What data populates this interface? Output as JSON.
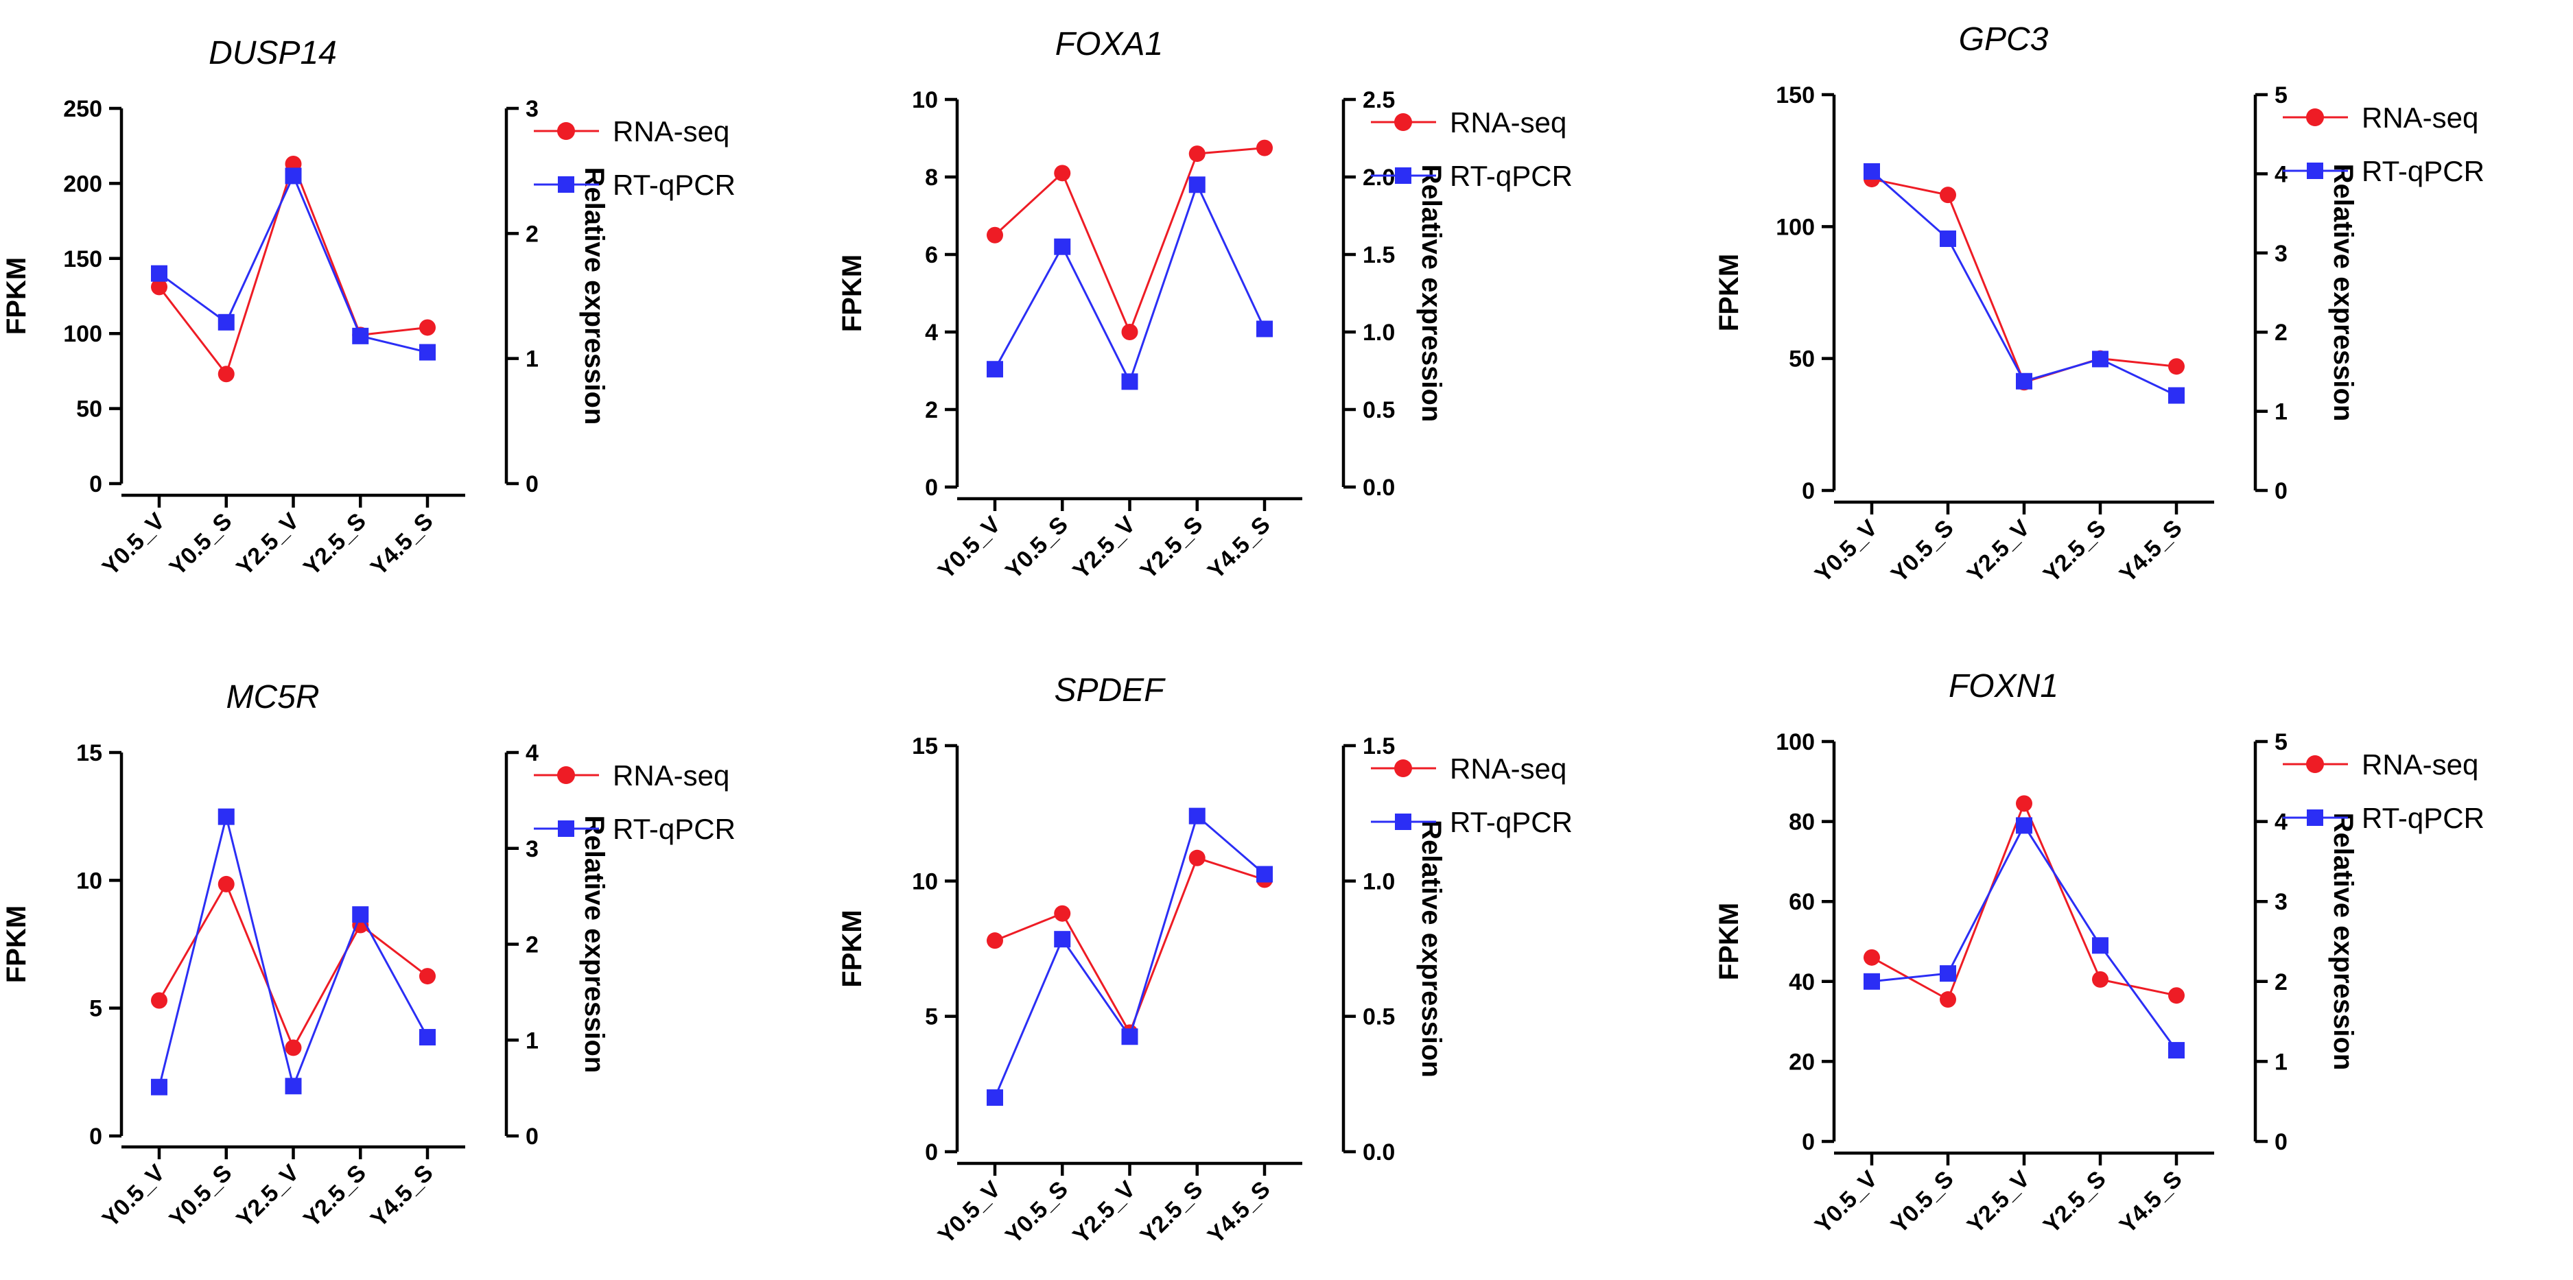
{
  "chart_data": [
    {
      "type": "line",
      "title": "DUSP14",
      "ylabel": "FPKM",
      "y2label": "Relative expression",
      "categories": [
        "Y0.5_V",
        "Y0.5_S",
        "Y2.5_V",
        "Y2.5_S",
        "Y4.5_S"
      ],
      "ylim": [
        0,
        250
      ],
      "yticks": [
        0,
        50,
        100,
        150,
        200,
        250
      ],
      "y2lim": [
        0,
        3
      ],
      "y2ticks": [
        "0",
        "1",
        "2",
        "3"
      ],
      "series": [
        {
          "name": "RNA-seq",
          "axis": "left",
          "color": "#ee1c25",
          "marker": "circle",
          "values": [
            131,
            73,
            213,
            99,
            104
          ]
        },
        {
          "name": "RT-qPCR",
          "axis": "right",
          "color": "#2b2ef5",
          "marker": "square",
          "values": [
            1.68,
            1.29,
            2.46,
            1.18,
            1.05
          ]
        }
      ]
    },
    {
      "type": "line",
      "title": "FOXA1",
      "ylabel": "FPKM",
      "y2label": "Relative expression",
      "categories": [
        "Y0.5_V",
        "Y0.5_S",
        "Y2.5_V",
        "Y2.5_S",
        "Y4.5_S"
      ],
      "ylim": [
        0,
        10
      ],
      "yticks": [
        0,
        2,
        4,
        6,
        8,
        10
      ],
      "y2lim": [
        0,
        2.5
      ],
      "y2ticks": [
        "0.0",
        "0.5",
        "1.0",
        "1.5",
        "2.0",
        "2.5"
      ],
      "series": [
        {
          "name": "RNA-seq",
          "axis": "left",
          "color": "#ee1c25",
          "marker": "circle",
          "values": [
            6.5,
            8.1,
            4.0,
            8.6,
            8.75
          ]
        },
        {
          "name": "RT-qPCR",
          "axis": "right",
          "color": "#2b2ef5",
          "marker": "square",
          "values": [
            0.76,
            1.55,
            0.68,
            1.95,
            1.02
          ]
        }
      ]
    },
    {
      "type": "line",
      "title": "GPC3",
      "ylabel": "FPKM",
      "y2label": "Relative expression",
      "categories": [
        "Y0.5_V",
        "Y0.5_S",
        "Y2.5_V",
        "Y2.5_S",
        "Y4.5_S"
      ],
      "ylim": [
        0,
        150
      ],
      "yticks": [
        0,
        50,
        100,
        150
      ],
      "y2lim": [
        0,
        5
      ],
      "y2ticks": [
        "0",
        "1",
        "2",
        "3",
        "4",
        "5"
      ],
      "series": [
        {
          "name": "RNA-seq",
          "axis": "left",
          "color": "#ee1c25",
          "marker": "circle",
          "values": [
            118,
            112,
            41,
            50,
            47
          ]
        },
        {
          "name": "RT-qPCR",
          "axis": "right",
          "color": "#2b2ef5",
          "marker": "square",
          "values": [
            4.03,
            3.18,
            1.38,
            1.66,
            1.2
          ]
        }
      ]
    },
    {
      "type": "line",
      "title": "MC5R",
      "ylabel": "FPKM",
      "y2label": "Relative expression",
      "categories": [
        "Y0.5_V",
        "Y0.5_S",
        "Y2.5_V",
        "Y2.5_S",
        "Y4.5_S"
      ],
      "ylim": [
        0,
        15
      ],
      "yticks": [
        0,
        5,
        10,
        15
      ],
      "y2lim": [
        0,
        4
      ],
      "y2ticks": [
        "0",
        "1",
        "2",
        "3",
        "4"
      ],
      "series": [
        {
          "name": "RNA-seq",
          "axis": "left",
          "color": "#ee1c25",
          "marker": "circle",
          "values": [
            5.3,
            9.85,
            3.45,
            8.25,
            6.25
          ]
        },
        {
          "name": "RT-qPCR",
          "axis": "right",
          "color": "#2b2ef5",
          "marker": "square",
          "values": [
            0.51,
            3.33,
            0.52,
            2.31,
            1.03
          ]
        }
      ]
    },
    {
      "type": "line",
      "title": "SPDEF",
      "ylabel": "FPKM",
      "y2label": "Relative expression",
      "categories": [
        "Y0.5_V",
        "Y0.5_S",
        "Y2.5_V",
        "Y2.5_S",
        "Y4.5_S"
      ],
      "ylim": [
        0,
        15
      ],
      "yticks": [
        0,
        5,
        10,
        15
      ],
      "y2lim": [
        0,
        1.5
      ],
      "y2ticks": [
        "0.0",
        "0.5",
        "1.0",
        "1.5"
      ],
      "series": [
        {
          "name": "RNA-seq",
          "axis": "left",
          "color": "#ee1c25",
          "marker": "circle",
          "values": [
            7.8,
            8.8,
            4.4,
            10.85,
            10.05
          ]
        },
        {
          "name": "RT-qPCR",
          "axis": "right",
          "color": "#2b2ef5",
          "marker": "square",
          "values": [
            0.2,
            0.785,
            0.425,
            1.24,
            1.025
          ]
        }
      ]
    },
    {
      "type": "line",
      "title": "FOXN1",
      "ylabel": "FPKM",
      "y2label": "Relative expression",
      "categories": [
        "Y0.5_V",
        "Y0.5_S",
        "Y2.5_V",
        "Y2.5_S",
        "Y4.5_S"
      ],
      "ylim": [
        0,
        100
      ],
      "yticks": [
        0,
        20,
        40,
        60,
        80,
        100
      ],
      "y2lim": [
        0,
        5
      ],
      "y2ticks": [
        "0",
        "1",
        "2",
        "3",
        "4",
        "5"
      ],
      "series": [
        {
          "name": "RNA-seq",
          "axis": "left",
          "color": "#ee1c25",
          "marker": "circle",
          "values": [
            46,
            35.5,
            84.5,
            40.5,
            36.5
          ]
        },
        {
          "name": "RT-qPCR",
          "axis": "right",
          "color": "#2b2ef5",
          "marker": "square",
          "values": [
            2.0,
            2.1,
            3.95,
            2.45,
            1.14
          ]
        }
      ]
    }
  ]
}
